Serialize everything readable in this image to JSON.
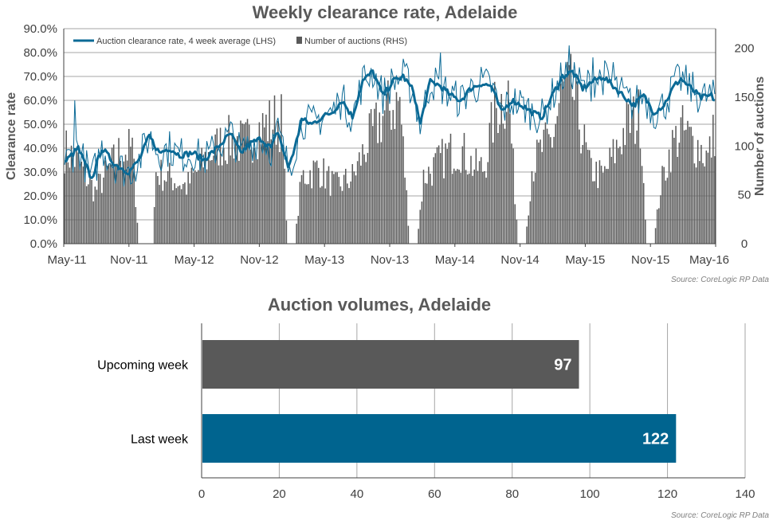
{
  "colors": {
    "line": "#0b6a96",
    "weekly_bar": "#595959",
    "upcoming_bar": "#595959",
    "last_bar": "#00648f",
    "grid": "#a6a6a6"
  },
  "chart_data": [
    {
      "type": "line+bar",
      "title": "Weekly clearance rate, Adelaide",
      "ylabel": "Clearance rate",
      "y2label": "Number of auctions",
      "ylim": [
        0,
        0.9
      ],
      "y2lim": [
        0,
        220
      ],
      "ytick_labels": [
        "0.0%",
        "10.0%",
        "20.0%",
        "30.0%",
        "40.0%",
        "50.0%",
        "60.0%",
        "70.0%",
        "80.0%",
        "90.0%"
      ],
      "y2tick_labels": [
        "0",
        "50",
        "100",
        "150",
        "200"
      ],
      "xtick_labels": [
        "May-11",
        "Nov-11",
        "May-12",
        "Nov-12",
        "May-13",
        "Nov-13",
        "May-14",
        "Nov-14",
        "May-15",
        "Nov-15",
        "May-16"
      ],
      "legend": {
        "position": "top-left",
        "line_label": "Auction clearance rate, 4 week average (LHS)",
        "bar_label": "Number of auctions (RHS)"
      },
      "source": "Source: CoreLogic  RP Data",
      "anchors": {
        "four_week_avg": [
          [
            0,
            0.34
          ],
          [
            8,
            0.4
          ],
          [
            16,
            0.27
          ],
          [
            22,
            0.4
          ],
          [
            30,
            0.33
          ],
          [
            38,
            0.3
          ],
          [
            44,
            0.35
          ],
          [
            50,
            0.45
          ],
          [
            56,
            0.38
          ],
          [
            62,
            0.4
          ],
          [
            68,
            0.37
          ],
          [
            76,
            0.38
          ],
          [
            82,
            0.35
          ],
          [
            90,
            0.4
          ],
          [
            98,
            0.46
          ],
          [
            104,
            0.38
          ],
          [
            110,
            0.42
          ],
          [
            116,
            0.44
          ],
          [
            122,
            0.4
          ],
          [
            126,
            0.47
          ],
          [
            132,
            0.32
          ],
          [
            136,
            0.4
          ],
          [
            140,
            0.52
          ],
          [
            146,
            0.5
          ],
          [
            152,
            0.53
          ],
          [
            158,
            0.55
          ],
          [
            164,
            0.6
          ],
          [
            170,
            0.53
          ],
          [
            176,
            0.68
          ],
          [
            182,
            0.72
          ],
          [
            188,
            0.62
          ],
          [
            194,
            0.68
          ],
          [
            200,
            0.7
          ],
          [
            206,
            0.64
          ],
          [
            210,
            0.5
          ],
          [
            216,
            0.68
          ],
          [
            222,
            0.66
          ],
          [
            228,
            0.62
          ],
          [
            234,
            0.6
          ],
          [
            240,
            0.65
          ],
          [
            246,
            0.67
          ],
          [
            252,
            0.66
          ],
          [
            258,
            0.55
          ],
          [
            264,
            0.6
          ],
          [
            270,
            0.58
          ],
          [
            276,
            0.55
          ],
          [
            282,
            0.53
          ],
          [
            288,
            0.62
          ],
          [
            294,
            0.7
          ],
          [
            300,
            0.72
          ],
          [
            306,
            0.65
          ],
          [
            312,
            0.68
          ],
          [
            318,
            0.7
          ],
          [
            324,
            0.66
          ],
          [
            330,
            0.62
          ],
          [
            336,
            0.58
          ],
          [
            342,
            0.62
          ],
          [
            348,
            0.55
          ],
          [
            354,
            0.58
          ],
          [
            360,
            0.66
          ],
          [
            364,
            0.69
          ],
          [
            370,
            0.65
          ],
          [
            376,
            0.61
          ],
          [
            382,
            0.62
          ],
          [
            384,
            0.6
          ]
        ],
        "weekly_noise": 0.05,
        "weekly_spikes": [
          [
            6,
            0.6
          ],
          [
            162,
            0.6
          ],
          [
            222,
            0.8
          ],
          [
            298,
            0.83
          ],
          [
            312,
            0.78
          ],
          [
            324,
            0.76
          ],
          [
            360,
            0.7
          ]
        ],
        "auctions": [
          [
            0,
            100
          ],
          [
            8,
            85
          ],
          [
            18,
            55
          ],
          [
            32,
            95
          ],
          [
            40,
            100
          ],
          [
            44,
            0
          ],
          [
            52,
            0
          ],
          [
            54,
            75
          ],
          [
            62,
            70
          ],
          [
            72,
            60
          ],
          [
            80,
            80
          ],
          [
            86,
            95
          ],
          [
            92,
            105
          ],
          [
            100,
            110
          ],
          [
            106,
            105
          ],
          [
            114,
            120
          ],
          [
            120,
            125
          ],
          [
            124,
            130
          ],
          [
            128,
            130
          ],
          [
            132,
            0
          ],
          [
            136,
            0
          ],
          [
            140,
            70
          ],
          [
            150,
            80
          ],
          [
            160,
            60
          ],
          [
            170,
            70
          ],
          [
            180,
            110
          ],
          [
            188,
            135
          ],
          [
            194,
            145
          ],
          [
            198,
            150
          ],
          [
            204,
            0
          ],
          [
            208,
            0
          ],
          [
            212,
            70
          ],
          [
            218,
            80
          ],
          [
            226,
            95
          ],
          [
            234,
            100
          ],
          [
            242,
            80
          ],
          [
            248,
            80
          ],
          [
            254,
            140
          ],
          [
            258,
            150
          ],
          [
            262,
            160
          ],
          [
            268,
            0
          ],
          [
            272,
            0
          ],
          [
            276,
            80
          ],
          [
            282,
            100
          ],
          [
            288,
            110
          ],
          [
            294,
            160
          ],
          [
            300,
            160
          ],
          [
            304,
            130
          ],
          [
            310,
            80
          ],
          [
            318,
            70
          ],
          [
            326,
            100
          ],
          [
            332,
            125
          ],
          [
            336,
            130
          ],
          [
            340,
            135
          ],
          [
            344,
            0
          ],
          [
            348,
            0
          ],
          [
            352,
            60
          ],
          [
            358,
            100
          ],
          [
            364,
            120
          ],
          [
            370,
            110
          ],
          [
            376,
            100
          ],
          [
            380,
            90
          ],
          [
            384,
            120
          ]
        ]
      }
    },
    {
      "type": "bar",
      "orientation": "horizontal",
      "title": "Auction volumes, Adelaide",
      "categories": [
        "Upcoming week",
        "Last week"
      ],
      "values": [
        97,
        122
      ],
      "value_labels": [
        "97",
        "122"
      ],
      "xlim": [
        0,
        140
      ],
      "xtick_labels": [
        "0",
        "20",
        "40",
        "60",
        "80",
        "100",
        "120",
        "140"
      ],
      "source": "Source: CoreLogic  RP Data"
    }
  ]
}
